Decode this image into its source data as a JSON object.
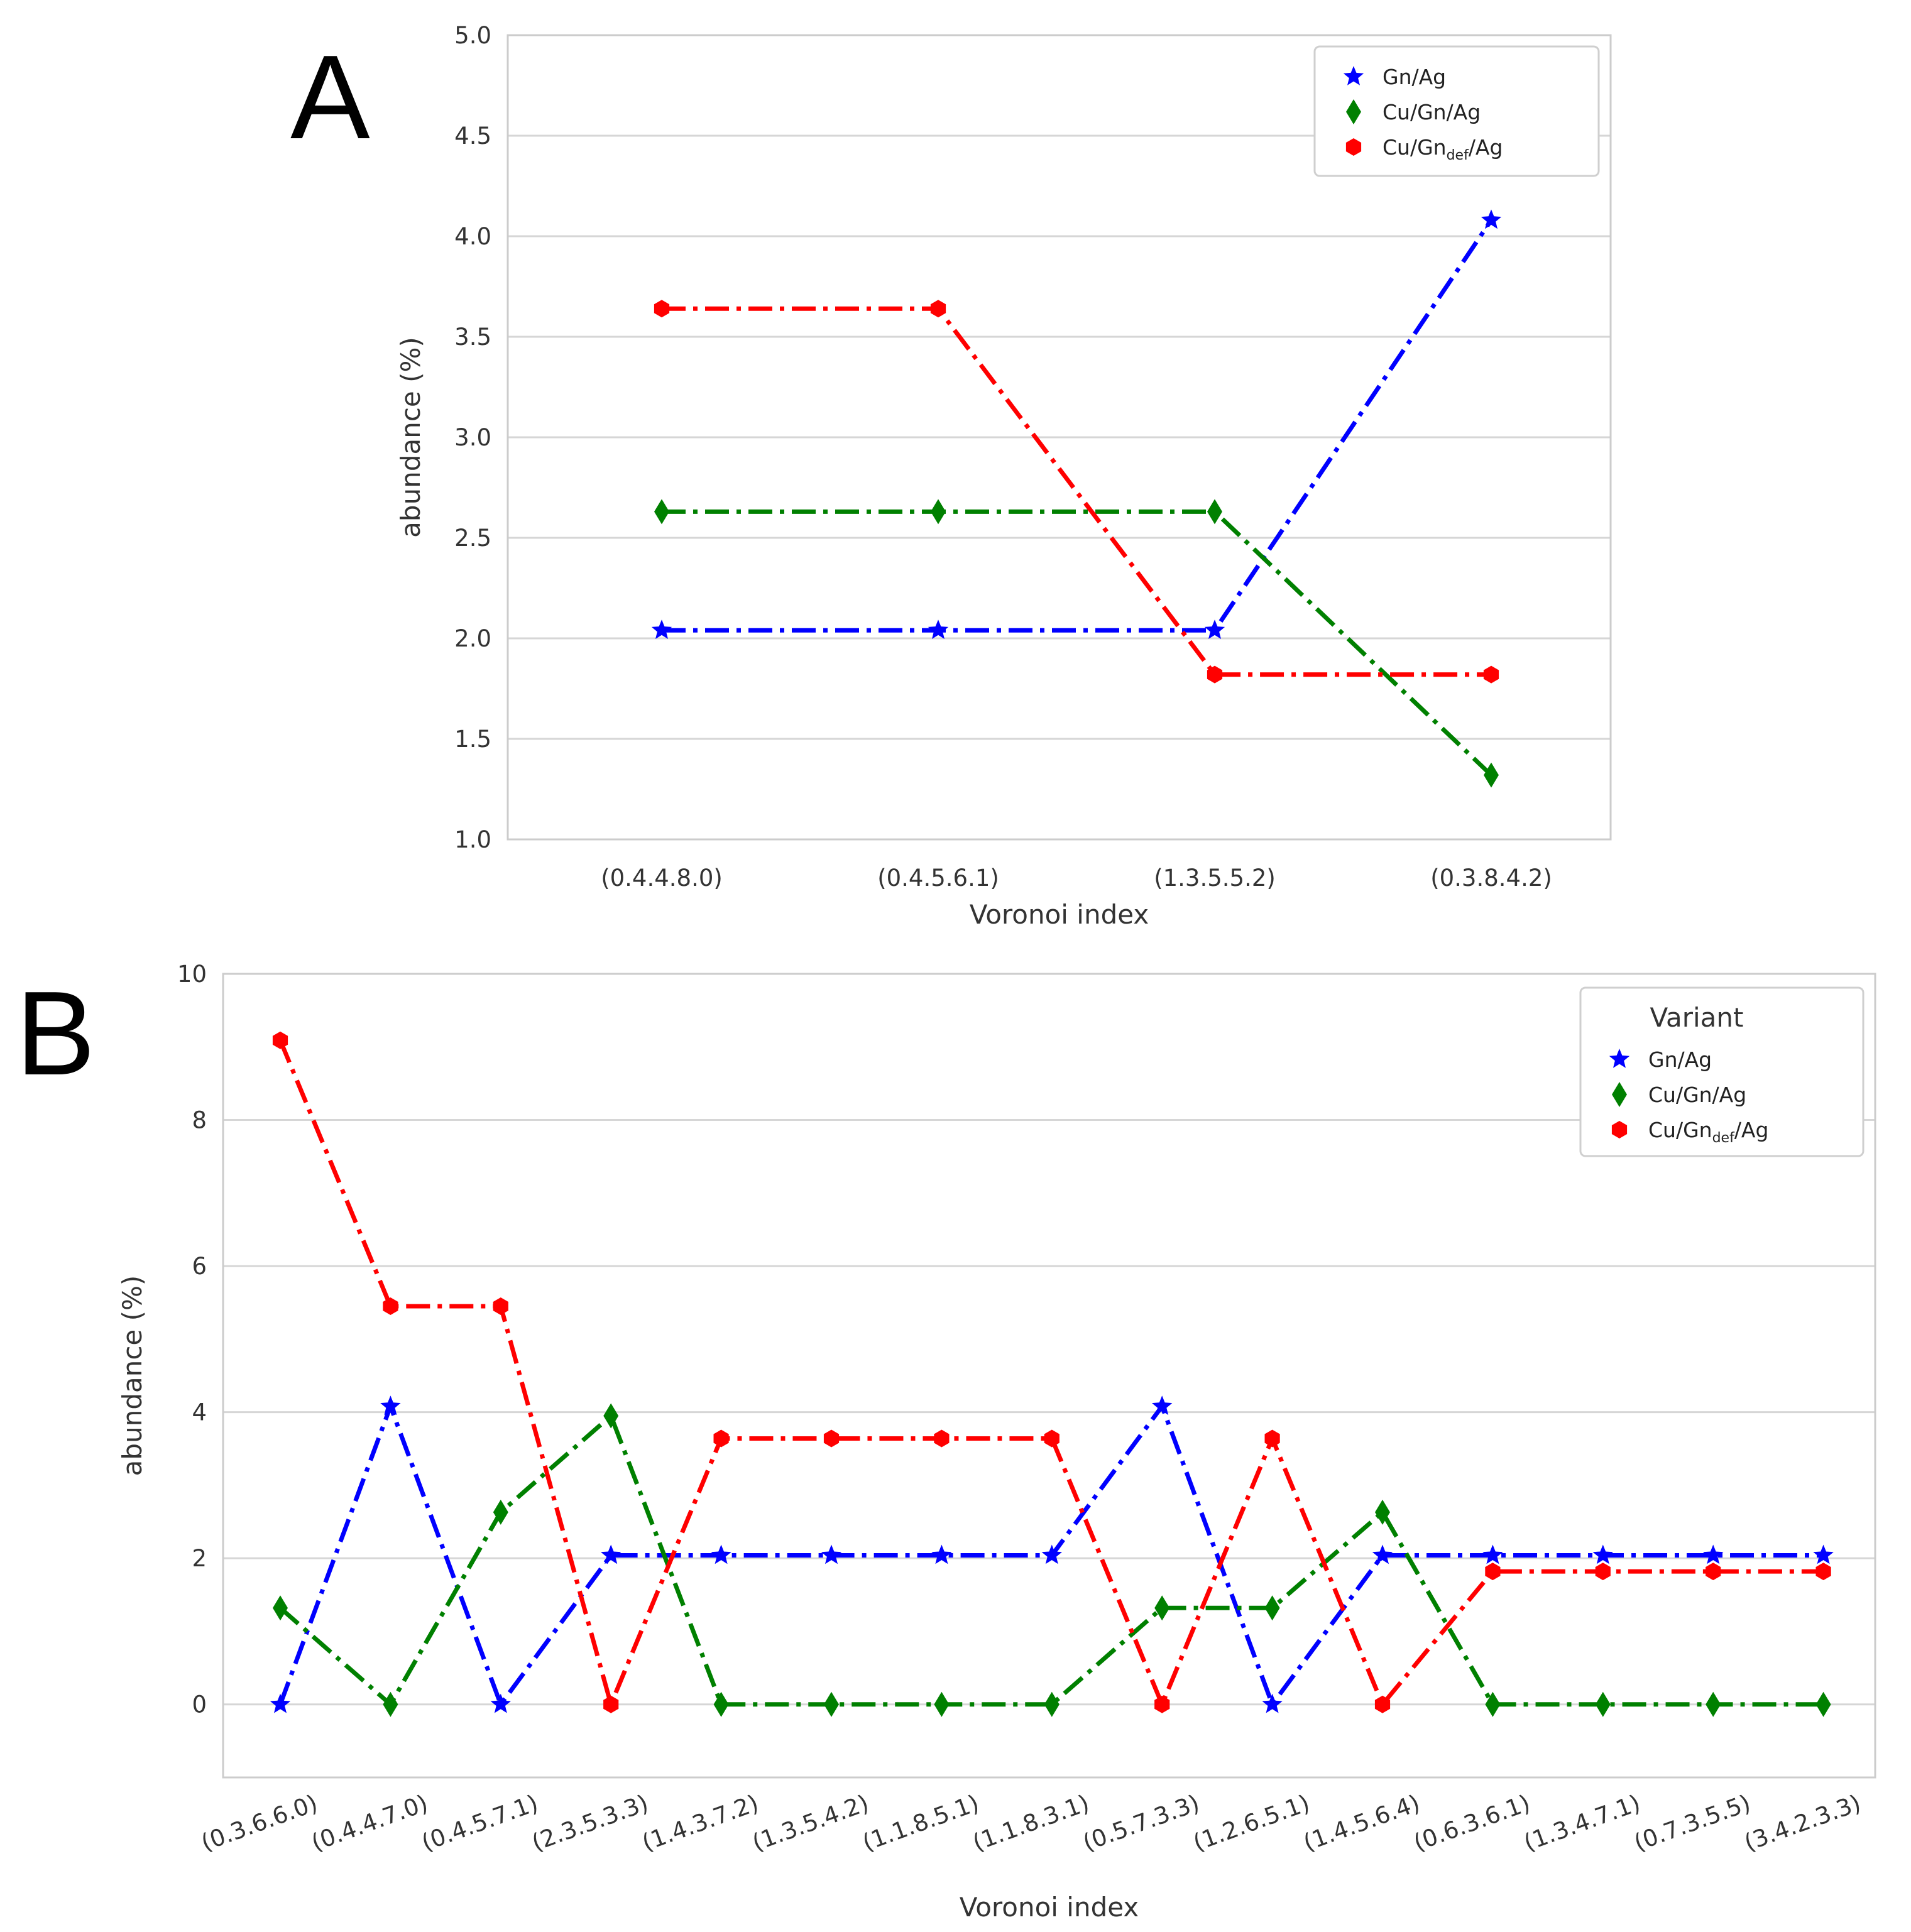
{
  "chart_data": [
    {
      "panel": "A",
      "type": "line",
      "title": "",
      "xlabel": "Voronoi index",
      "ylabel": "abundance (%)",
      "categories": [
        "(0.4.4.8.0)",
        "(0.4.5.6.1)",
        "(1.3.5.5.2)",
        "(0.3.8.4.2)"
      ],
      "ylim": [
        1.0,
        5.0
      ],
      "yticks": [
        "1.0",
        "1.5",
        "2.0",
        "2.5",
        "3.0",
        "3.5",
        "4.0",
        "4.5",
        "5.0"
      ],
      "grid": true,
      "legend_title": "",
      "legend_position": "top-right",
      "series": [
        {
          "name": "Gn/Ag",
          "color": "#0000ff",
          "marker": "star",
          "values": [
            2.04,
            2.04,
            2.04,
            4.08
          ]
        },
        {
          "name": "Cu/Gn/Ag",
          "color": "#008000",
          "marker": "diamond",
          "values": [
            2.63,
            2.63,
            2.63,
            1.32
          ]
        },
        {
          "name": "Cu/Gn",
          "sub": "def",
          "suffix": "/Ag",
          "color": "#ff0000",
          "marker": "hexagon",
          "values": [
            3.64,
            3.64,
            1.82,
            1.82
          ]
        }
      ]
    },
    {
      "panel": "B",
      "type": "line",
      "title": "",
      "xlabel": "Voronoi index",
      "ylabel": "abundance (%)",
      "categories": [
        "(0.3.6.6.0)",
        "(0.4.4.7.0)",
        "(0.4.5.7.1)",
        "(2.3.5.3.3)",
        "(1.4.3.7.2)",
        "(1.3.5.4.2)",
        "(1.1.8.5.1)",
        "(1.1.8.3.1)",
        "(0.5.7.3.3)",
        "(1.2.6.5.1)",
        "(1.4.5.6.4)",
        "(0.6.3.6.1)",
        "(1.3.4.7.1)",
        "(0.7.3.5.5)",
        "(3.4.2.3.3)"
      ],
      "ylim": [
        -1.0,
        10.0
      ],
      "yticks": [
        "0",
        "2",
        "4",
        "6",
        "8",
        "10"
      ],
      "grid": true,
      "legend_title": "Variant",
      "legend_position": "top-right",
      "series": [
        {
          "name": "Gn/Ag",
          "color": "#0000ff",
          "marker": "star",
          "values": [
            0,
            4.08,
            0,
            2.04,
            2.04,
            2.04,
            2.04,
            2.04,
            4.08,
            0,
            2.04,
            2.04,
            2.04,
            2.04,
            2.04
          ]
        },
        {
          "name": "Cu/Gn/Ag",
          "color": "#008000",
          "marker": "diamond",
          "values": [
            1.32,
            0,
            2.63,
            3.95,
            0,
            0,
            0,
            0,
            1.32,
            1.32,
            2.63,
            0,
            0,
            0,
            0
          ]
        },
        {
          "name": "Cu/Gn",
          "sub": "def",
          "suffix": "/Ag",
          "color": "#ff0000",
          "marker": "hexagon",
          "values": [
            9.09,
            5.45,
            5.45,
            0,
            3.64,
            3.64,
            3.64,
            3.64,
            0,
            3.64,
            0,
            1.82,
            1.82,
            1.82,
            1.82
          ]
        }
      ]
    }
  ]
}
